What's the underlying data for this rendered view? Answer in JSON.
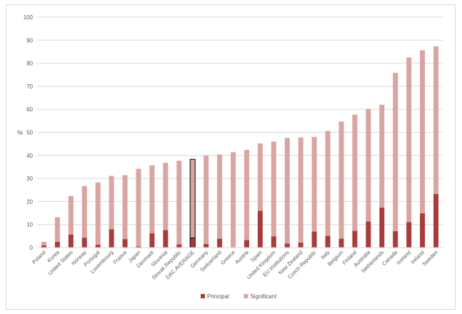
{
  "chart_data": {
    "type": "bar",
    "stacked": true,
    "title": "",
    "xlabel": "",
    "ylabel": "%",
    "ylim": [
      0,
      100
    ],
    "yticks": [
      0,
      10,
      20,
      30,
      40,
      50,
      60,
      70,
      80,
      90,
      100
    ],
    "grid": true,
    "legend_position": "bottom",
    "categories": [
      "Poland",
      "Korea",
      "United States",
      "Norway",
      "Portugal",
      "Luxembourg",
      "France",
      "Japan",
      "Denmark",
      "Slovenia",
      "Slovak Republic",
      "DAC AVERAGE",
      "Germany",
      "Switzerland",
      "Greece",
      "Austria",
      "Spain",
      "United Kingdom",
      "EU Institutions",
      "New Zealand",
      "Czech Republic",
      "Italy",
      "Belgium",
      "Finland",
      "Australia",
      "Netherlands",
      "Canada",
      "Iceland",
      "Ireland",
      "Sweden"
    ],
    "highlighted_category": "DAC AVERAGE",
    "series": [
      {
        "name": "Principal",
        "color": "#a83c3a",
        "values": [
          1,
          2.5,
          5.7,
          4.3,
          1.3,
          8,
          3.7,
          0.5,
          6.2,
          7.6,
          1.4,
          4.2,
          1.6,
          3.9,
          0,
          3.3,
          16,
          4.9,
          1.8,
          2.2,
          7,
          5.1,
          3.9,
          7.3,
          11.3,
          17.4,
          7.2,
          11.1,
          14.9,
          23.3
        ]
      },
      {
        "name": "Significant",
        "color": "#daa4a2",
        "values": [
          1.5,
          10.7,
          16.7,
          22.4,
          27,
          23.1,
          27.7,
          33.7,
          29.5,
          29.2,
          36.3,
          34.1,
          38.3,
          36.5,
          41.4,
          39.1,
          29.2,
          41.1,
          45.8,
          45.6,
          41,
          45.5,
          50.8,
          50.4,
          48.9,
          44.6,
          68.6,
          71.4,
          70.7,
          64
        ]
      }
    ]
  }
}
